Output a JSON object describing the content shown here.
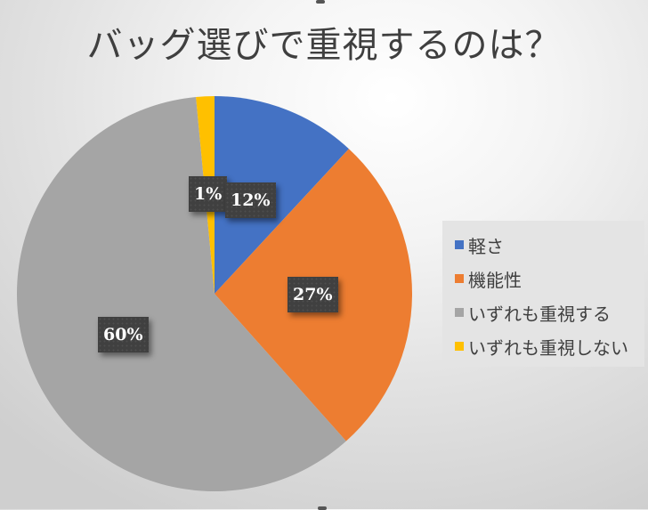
{
  "title": "バッグ選びで重視するのは？",
  "colors": {
    "blue": "#4472c4",
    "orange": "#ed7d31",
    "gray": "#a5a5a5",
    "yellow": "#ffc000",
    "label_bg": "#404040",
    "legend_bg": "#e4e4e4"
  },
  "legend": {
    "items": [
      {
        "label": "軽さ",
        "color": "#4472c4"
      },
      {
        "label": "機能性",
        "color": "#ed7d31"
      },
      {
        "label": "いずれも重視する",
        "color": "#a5a5a5"
      },
      {
        "label": "いずれも重視しない",
        "color": "#ffc000"
      }
    ]
  },
  "labels": {
    "light": "12%",
    "function": "27%",
    "both": "60%",
    "neither": "1%"
  },
  "chart_data": {
    "type": "pie",
    "title": "バッグ選びで重視するのは？",
    "categories": [
      "軽さ",
      "機能性",
      "いずれも重視する",
      "いずれも重視しない"
    ],
    "values": [
      12,
      27,
      60,
      1
    ],
    "unit": "%",
    "colors": [
      "#4472c4",
      "#ed7d31",
      "#a5a5a5",
      "#ffc000"
    ],
    "start_angle": "12 o'clock, clockwise",
    "data_labels": [
      "12%",
      "27%",
      "60%",
      "1%"
    ],
    "legend_position": "right"
  }
}
